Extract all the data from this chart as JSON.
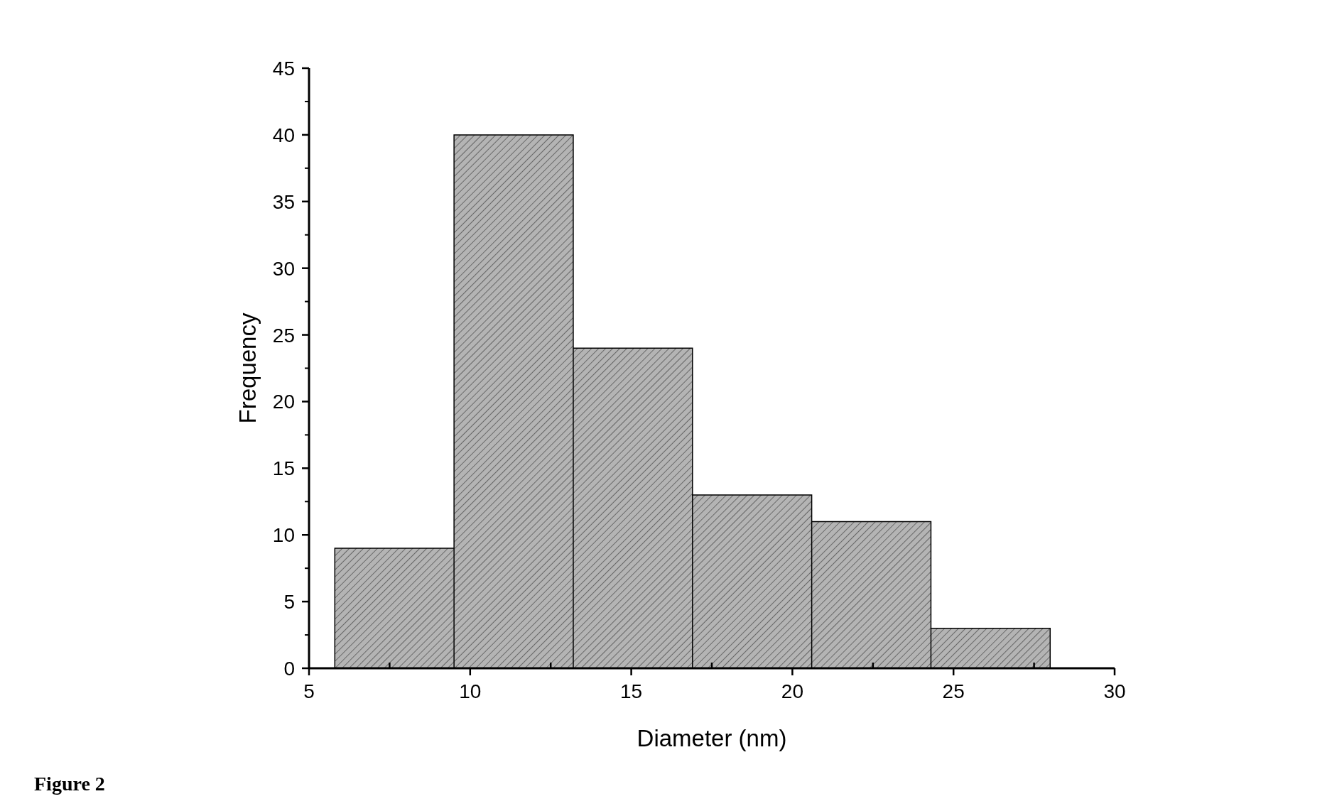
{
  "chart_data": {
    "type": "histogram",
    "xlabel": "Diameter (nm)",
    "ylabel": "Frequency",
    "bins": [
      5.8,
      9.5,
      13.2,
      16.9,
      20.6,
      24.3,
      28.0
    ],
    "values": [
      9,
      40,
      24,
      13,
      11,
      3
    ],
    "color": "#b4b4b4",
    "xlim": [
      5,
      30
    ],
    "xticks": [
      5,
      10,
      15,
      20,
      25,
      30
    ],
    "ylim": [
      0,
      45
    ],
    "yticks": [
      0,
      5,
      10,
      15,
      20,
      25,
      30,
      35,
      40,
      45
    ],
    "grid": false,
    "annotations": [
      "Figure 2"
    ]
  }
}
